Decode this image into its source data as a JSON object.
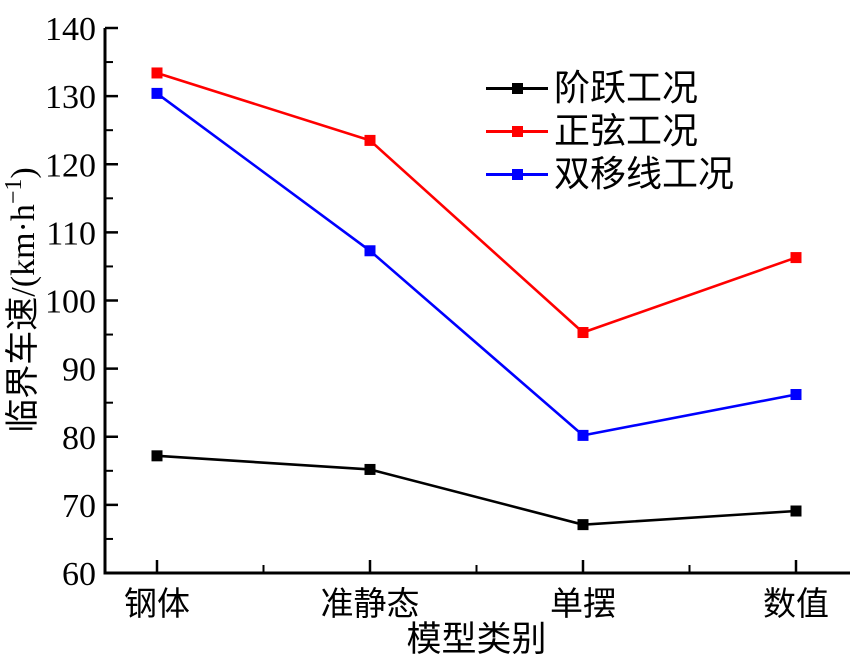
{
  "page": {
    "background_color": "#ffffff",
    "text_color": "#000000"
  },
  "chart_data": {
    "type": "line",
    "title": "",
    "categories": [
      "钢体",
      "准静态",
      "单摆",
      "数值"
    ],
    "series": [
      {
        "name": "阶跃工况",
        "color": "#000000",
        "marker": "square",
        "values": [
          77.2,
          75.2,
          67.1,
          69.1
        ]
      },
      {
        "name": "正弦工况",
        "color": "#ff0000",
        "marker": "square",
        "values": [
          133.4,
          123.5,
          95.3,
          106.3
        ]
      },
      {
        "name": "双移线工况",
        "color": "#0000ff",
        "marker": "square",
        "values": [
          130.4,
          107.3,
          80.2,
          86.2
        ]
      }
    ],
    "xlabel": "模型类别",
    "ylabel": "临界车速/(km·h⁻¹)",
    "ylabel_parts": {
      "prefix": "临界车速/(km·h",
      "superscript": "−1",
      "suffix": ")"
    },
    "ylim": [
      60,
      140
    ],
    "y_major_step": 10,
    "y_minor_step": 5,
    "y_tick_labels": [
      "60",
      "70",
      "80",
      "90",
      "100",
      "110",
      "120",
      "130",
      "140"
    ],
    "legend_position": "upper-right",
    "grid": false,
    "axis_color": "#000000"
  }
}
